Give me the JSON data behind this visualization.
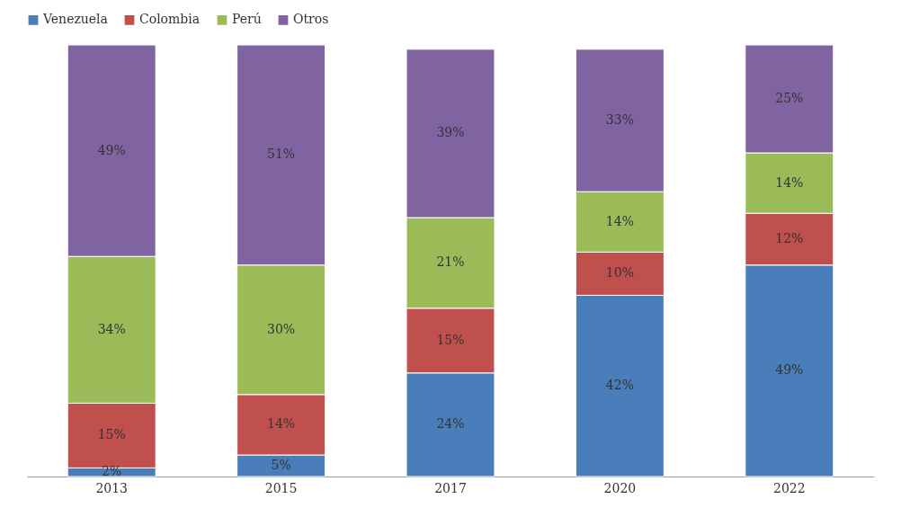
{
  "chart_data": {
    "type": "bar",
    "stacked": true,
    "categories": [
      "2013",
      "2015",
      "2017",
      "2020",
      "2022"
    ],
    "series": [
      {
        "name": "Venezuela",
        "color": "#4a7ebb",
        "values": [
          2,
          5,
          24,
          42,
          49
        ],
        "value_labels": [
          "2%",
          "5%",
          "24%",
          "42%",
          "49%"
        ]
      },
      {
        "name": "Colombia",
        "color": "#c0504d",
        "values": [
          15,
          14,
          15,
          10,
          12
        ],
        "value_labels": [
          "15%",
          "14%",
          "15%",
          "10%",
          "12%"
        ]
      },
      {
        "name": "Perú",
        "color": "#9bbb59",
        "values": [
          34,
          30,
          21,
          14,
          14
        ],
        "value_labels": [
          "34%",
          "30%",
          "21%",
          "14%",
          "14%"
        ]
      },
      {
        "name": "Otros",
        "color": "#8064a2",
        "values": [
          49,
          51,
          39,
          33,
          25
        ],
        "value_labels": [
          "49%",
          "51%",
          "39%",
          "33%",
          "25%"
        ]
      }
    ],
    "legend": "top",
    "tick_labels": "x"
  }
}
